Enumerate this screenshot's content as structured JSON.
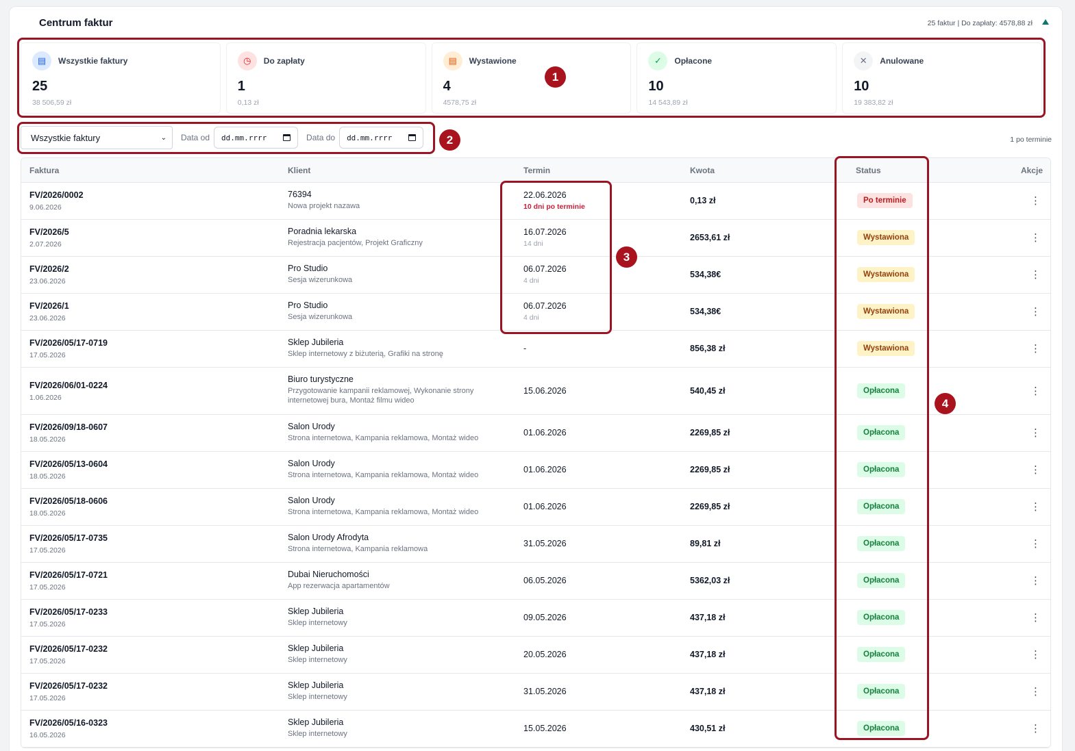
{
  "title": "Centrum faktur",
  "summary": "25 faktur | Do zapłaty: 4578,88 zł",
  "colors": {
    "accent": "#0f766e",
    "annotation": "#9b1423"
  },
  "stats": [
    {
      "icon": "document-icon",
      "label": "Wszystkie faktury",
      "count": "25",
      "amount": "38 506,59 zł",
      "bg": "#dbeafe",
      "fg": "#2563eb",
      "glyph": "▤"
    },
    {
      "icon": "clock-icon",
      "label": "Do zapłaty",
      "count": "1",
      "amount": "0,13 zł",
      "bg": "#fee2e2",
      "fg": "#dc2626",
      "glyph": "◷"
    },
    {
      "icon": "issued-document-icon",
      "label": "Wystawione",
      "count": "4",
      "amount": "4578,75 zł",
      "bg": "#ffedd5",
      "fg": "#ea580c",
      "glyph": "▤"
    },
    {
      "icon": "check-icon",
      "label": "Opłacone",
      "count": "10",
      "amount": "14 543,89 zł",
      "bg": "#dcfce7",
      "fg": "#16a34a",
      "glyph": "✓"
    },
    {
      "icon": "x-icon",
      "label": "Anulowane",
      "count": "10",
      "amount": "19 383,82 zł",
      "bg": "#f3f4f6",
      "fg": "#6b7280",
      "glyph": "✕"
    }
  ],
  "filters": {
    "type_selected": "Wszystkie faktury",
    "date_from_label": "Data od",
    "date_from_placeholder": "dd.mm.rrrr",
    "date_to_label": "Data do",
    "date_to_placeholder": "dd.mm.rrrr",
    "overdue_count": "1 po terminie"
  },
  "table": {
    "headers": {
      "invoice": "Faktura",
      "client": "Klient",
      "due": "Termin",
      "amount": "Kwota",
      "status": "Status",
      "actions": "Akcje"
    },
    "rows": [
      {
        "number": "FV/2026/0002",
        "date": "9.06.2026",
        "client": "76394",
        "desc": "Nowa projekt nazawa",
        "due": "22.06.2026",
        "due_sub": "10 dni po terminie",
        "due_sub_red": true,
        "amount": "0,13 zł",
        "status": "Po terminie",
        "status_kind": "over"
      },
      {
        "number": "FV/2026/5",
        "date": "2.07.2026",
        "client": "Poradnia lekarska",
        "desc": "Rejestracja pacjentów, Projekt Graficzny",
        "due": "16.07.2026",
        "due_sub": "14 dni",
        "amount": "2653,61 zł",
        "status": "Wystawiona",
        "status_kind": "iss"
      },
      {
        "number": "FV/2026/2",
        "date": "23.06.2026",
        "client": "Pro Studio",
        "desc": "Sesja wizerunkowa",
        "due": "06.07.2026",
        "due_sub": "4 dni",
        "amount": "534,38€",
        "status": "Wystawiona",
        "status_kind": "iss"
      },
      {
        "number": "FV/2026/1",
        "date": "23.06.2026",
        "client": "Pro Studio",
        "desc": "Sesja wizerunkowa",
        "due": "06.07.2026",
        "due_sub": "4 dni",
        "amount": "534,38€",
        "status": "Wystawiona",
        "status_kind": "iss"
      },
      {
        "number": "FV/2026/05/17-0719",
        "date": "17.05.2026",
        "client": "Sklep Jubileria",
        "desc": "Sklep internetowy z biżuterią, Grafiki na stronę",
        "due": "-",
        "amount": "856,38 zł",
        "status": "Wystawiona",
        "status_kind": "iss"
      },
      {
        "number": "FV/2026/06/01-0224",
        "date": "1.06.2026",
        "client": "Biuro turystyczne",
        "desc": "Przygotowanie kampanii reklamowej, Wykonanie strony internetowej bura, Montaż filmu wideo",
        "due": "15.06.2026",
        "amount": "540,45 zł",
        "status": "Opłacona",
        "status_kind": "paid",
        "tall": true
      },
      {
        "number": "FV/2026/09/18-0607",
        "date": "18.05.2026",
        "client": "Salon Urody",
        "desc": "Strona internetowa, Kampania reklamowa, Montaż wideo",
        "due": "01.06.2026",
        "amount": "2269,85 zł",
        "status": "Opłacona",
        "status_kind": "paid"
      },
      {
        "number": "FV/2026/05/13-0604",
        "date": "18.05.2026",
        "client": "Salon Urody",
        "desc": "Strona internetowa, Kampania reklamowa, Montaż wideo",
        "due": "01.06.2026",
        "amount": "2269,85 zł",
        "status": "Opłacona",
        "status_kind": "paid"
      },
      {
        "number": "FV/2026/05/18-0606",
        "date": "18.05.2026",
        "client": "Salon Urody",
        "desc": "Strona internetowa, Kampania reklamowa, Montaż wideo",
        "due": "01.06.2026",
        "amount": "2269,85 zł",
        "status": "Opłacona",
        "status_kind": "paid"
      },
      {
        "number": "FV/2026/05/17-0735",
        "date": "17.05.2026",
        "client": "Salon Urody Afrodyta",
        "desc": "Strona internetowa, Kampania reklamowa",
        "due": "31.05.2026",
        "amount": "89,81 zł",
        "status": "Opłacona",
        "status_kind": "paid"
      },
      {
        "number": "FV/2026/05/17-0721",
        "date": "17.05.2026",
        "client": "Dubai Nieruchomości",
        "desc": "App rezerwacja apartamentów",
        "due": "06.05.2026",
        "amount": "5362,03 zł",
        "status": "Opłacona",
        "status_kind": "paid"
      },
      {
        "number": "FV/2026/05/17-0233",
        "date": "17.05.2026",
        "client": "Sklep Jubileria",
        "desc": "Sklep internetowy",
        "due": "09.05.2026",
        "amount": "437,18 zł",
        "status": "Opłacona",
        "status_kind": "paid"
      },
      {
        "number": "FV/2026/05/17-0232",
        "date": "17.05.2026",
        "client": "Sklep Jubileria",
        "desc": "Sklep internetowy",
        "due": "20.05.2026",
        "amount": "437,18 zł",
        "status": "Opłacona",
        "status_kind": "paid"
      },
      {
        "number": "FV/2026/05/17-0232",
        "date": "17.05.2026",
        "client": "Sklep Jubileria",
        "desc": "Sklep internetowy",
        "due": "31.05.2026",
        "amount": "437,18 zł",
        "status": "Opłacona",
        "status_kind": "paid"
      },
      {
        "number": "FV/2026/05/16-0323",
        "date": "16.05.2026",
        "client": "Sklep Jubileria",
        "desc": "Sklep internetowy",
        "due": "15.05.2026",
        "amount": "430,51 zł",
        "status": "Opłacona",
        "status_kind": "paid"
      }
    ]
  },
  "annotations": [
    "1",
    "2",
    "3",
    "4"
  ]
}
